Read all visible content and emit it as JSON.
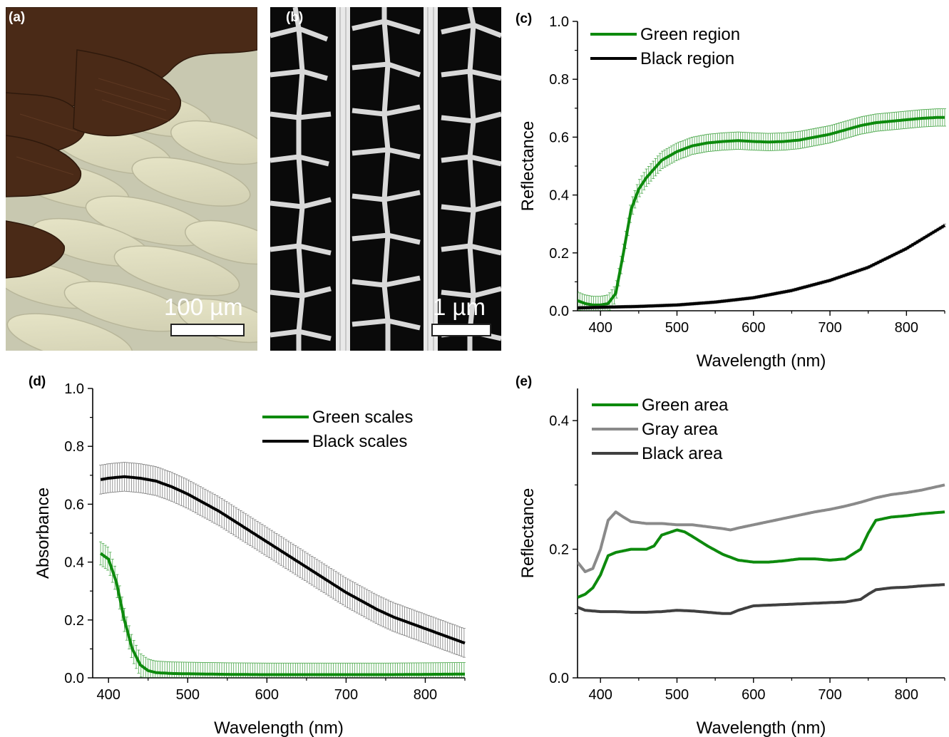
{
  "figure": {
    "panel_a": {
      "label": "(a)",
      "scale_text": "100 µm",
      "colors": {
        "dark_scale": "#4a2a17",
        "pale_scale": "#e4e2c2",
        "background": "#c9c9b0"
      }
    },
    "panel_b": {
      "label": "(b)",
      "scale_text": "1 µm",
      "colors": {
        "background": "#0a0a0a",
        "ridge": "#e6e6e6",
        "membrane": "#1c1c1c"
      }
    }
  },
  "chart_data": [
    {
      "panel": "(c)",
      "type": "line",
      "xlabel": "Wavelength (nm)",
      "ylabel": "Reflectance",
      "xlim": [
        370,
        850
      ],
      "ylim": [
        0,
        1.0
      ],
      "xticks": [
        400,
        500,
        600,
        700,
        800
      ],
      "yticks": [
        "0.0",
        "0.2",
        "0.4",
        "0.6",
        "0.8",
        "1.0"
      ],
      "yticks_values": [
        0,
        0.2,
        0.4,
        0.6,
        0.8,
        1.0
      ],
      "legend": "top-left",
      "error_bars": true,
      "series": [
        {
          "name": "Green region",
          "color": "#0d8a0d",
          "x": [
            370,
            380,
            390,
            400,
            410,
            420,
            430,
            440,
            450,
            460,
            470,
            480,
            500,
            520,
            540,
            560,
            580,
            600,
            620,
            640,
            660,
            680,
            700,
            720,
            740,
            760,
            780,
            800,
            820,
            840,
            850
          ],
          "y": [
            0.035,
            0.025,
            0.02,
            0.02,
            0.025,
            0.06,
            0.2,
            0.35,
            0.42,
            0.46,
            0.49,
            0.52,
            0.55,
            0.57,
            0.58,
            0.585,
            0.588,
            0.585,
            0.583,
            0.585,
            0.59,
            0.6,
            0.61,
            0.625,
            0.64,
            0.65,
            0.655,
            0.66,
            0.665,
            0.668,
            0.668
          ],
          "err": 0.03
        },
        {
          "name": "Black region",
          "color": "#000000",
          "x": [
            370,
            400,
            450,
            500,
            550,
            600,
            650,
            700,
            750,
            800,
            850
          ],
          "y": [
            0.01,
            0.012,
            0.015,
            0.02,
            0.03,
            0.045,
            0.07,
            0.105,
            0.15,
            0.215,
            0.295
          ],
          "err": 0.005
        }
      ]
    },
    {
      "panel": "(d)",
      "type": "line",
      "xlabel": "Wavelength (nm)",
      "ylabel": "Absorbance",
      "xlim": [
        380,
        850
      ],
      "ylim": [
        0,
        1.0
      ],
      "xticks": [
        400,
        500,
        600,
        700,
        800
      ],
      "yticks": [
        "0.0",
        "0.2",
        "0.4",
        "0.6",
        "0.8",
        "1.0"
      ],
      "yticks_values": [
        0,
        0.2,
        0.4,
        0.6,
        0.8,
        1.0
      ],
      "legend": "top-right",
      "error_bars": true,
      "series": [
        {
          "name": "Green scales",
          "color": "#0d8a0d",
          "x": [
            390,
            400,
            410,
            420,
            430,
            440,
            450,
            460,
            480,
            500,
            550,
            600,
            650,
            700,
            750,
            800,
            850
          ],
          "y": [
            0.43,
            0.41,
            0.33,
            0.2,
            0.1,
            0.045,
            0.025,
            0.018,
            0.015,
            0.014,
            0.012,
            0.011,
            0.011,
            0.011,
            0.011,
            0.012,
            0.013
          ],
          "err": 0.04
        },
        {
          "name": "Black scales",
          "color": "#000000",
          "x": [
            390,
            400,
            420,
            440,
            460,
            480,
            500,
            520,
            540,
            560,
            580,
            600,
            620,
            640,
            660,
            680,
            700,
            720,
            740,
            760,
            780,
            800,
            820,
            840,
            850
          ],
          "y": [
            0.685,
            0.69,
            0.695,
            0.69,
            0.68,
            0.66,
            0.635,
            0.605,
            0.575,
            0.54,
            0.505,
            0.47,
            0.435,
            0.4,
            0.365,
            0.33,
            0.295,
            0.265,
            0.235,
            0.21,
            0.19,
            0.17,
            0.15,
            0.13,
            0.12
          ],
          "err": 0.05
        }
      ]
    },
    {
      "panel": "(e)",
      "type": "line",
      "xlabel": "Wavelength (nm)",
      "ylabel": "Reflectance",
      "xlim": [
        370,
        850
      ],
      "ylim": [
        0,
        0.45
      ],
      "xticks": [
        400,
        500,
        600,
        700,
        800
      ],
      "yticks": [
        "0.0",
        "0.2",
        "0.4"
      ],
      "yticks_values": [
        0,
        0.2,
        0.4
      ],
      "legend": "top-left",
      "error_bars": false,
      "series": [
        {
          "name": "Green area",
          "color": "#0d8a0d",
          "x": [
            370,
            380,
            390,
            400,
            410,
            420,
            440,
            460,
            470,
            480,
            500,
            510,
            520,
            540,
            560,
            580,
            600,
            620,
            640,
            660,
            680,
            700,
            720,
            740,
            750,
            760,
            780,
            800,
            820,
            850
          ],
          "y": [
            0.125,
            0.13,
            0.14,
            0.16,
            0.19,
            0.195,
            0.2,
            0.2,
            0.205,
            0.222,
            0.23,
            0.227,
            0.22,
            0.205,
            0.192,
            0.183,
            0.18,
            0.18,
            0.182,
            0.185,
            0.185,
            0.183,
            0.185,
            0.2,
            0.225,
            0.245,
            0.25,
            0.252,
            0.255,
            0.258
          ],
          "err": 0
        },
        {
          "name": "Gray area",
          "color": "#8a8a8a",
          "x": [
            370,
            380,
            390,
            400,
            410,
            420,
            430,
            440,
            460,
            480,
            500,
            520,
            540,
            560,
            570,
            580,
            600,
            620,
            640,
            660,
            680,
            700,
            720,
            740,
            760,
            780,
            800,
            820,
            850
          ],
          "y": [
            0.18,
            0.165,
            0.17,
            0.2,
            0.245,
            0.258,
            0.25,
            0.243,
            0.24,
            0.24,
            0.238,
            0.238,
            0.235,
            0.232,
            0.23,
            0.233,
            0.238,
            0.243,
            0.248,
            0.253,
            0.258,
            0.262,
            0.267,
            0.273,
            0.28,
            0.285,
            0.288,
            0.292,
            0.3
          ],
          "err": 0
        },
        {
          "name": "Black area",
          "color": "#404040",
          "x": [
            370,
            380,
            390,
            400,
            420,
            440,
            460,
            480,
            500,
            520,
            540,
            560,
            570,
            580,
            600,
            620,
            640,
            660,
            680,
            700,
            720,
            740,
            750,
            760,
            780,
            800,
            820,
            850
          ],
          "y": [
            0.11,
            0.105,
            0.104,
            0.103,
            0.103,
            0.102,
            0.102,
            0.103,
            0.105,
            0.104,
            0.102,
            0.1,
            0.1,
            0.105,
            0.112,
            0.113,
            0.114,
            0.115,
            0.116,
            0.117,
            0.118,
            0.122,
            0.13,
            0.137,
            0.14,
            0.141,
            0.143,
            0.145
          ],
          "err": 0
        }
      ]
    }
  ]
}
